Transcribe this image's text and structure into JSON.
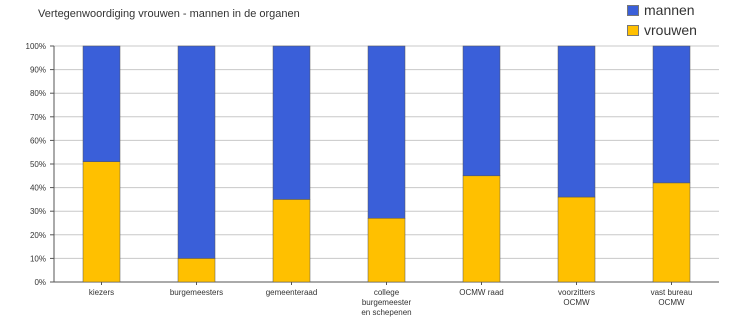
{
  "chart_data": {
    "type": "bar",
    "stacked": true,
    "title": "Vertegenwoordiging vrouwen - mannen in de organen",
    "categories": [
      "kiezers",
      "burgemeesters",
      "gemeenteraad",
      "college burgemeester en schepenen",
      "OCMW raad",
      "voorzitters OCMW",
      "vast bureau OCMW"
    ],
    "category_lines": [
      [
        "kiezers"
      ],
      [
        "burgemeesters"
      ],
      [
        "gemeenteraad"
      ],
      [
        "college",
        "burgemeester",
        "en schepenen"
      ],
      [
        "OCMW raad"
      ],
      [
        "voorzitters",
        "OCMW"
      ],
      [
        "vast bureau",
        "OCMW"
      ]
    ],
    "series": [
      {
        "name": "vrouwen",
        "color": "#FFC000",
        "values": [
          51,
          10,
          35,
          27,
          45,
          36,
          42
        ]
      },
      {
        "name": "mannen",
        "color": "#3A5FD9",
        "values": [
          49,
          90,
          65,
          73,
          55,
          64,
          58
        ]
      }
    ],
    "ylim": [
      0,
      100
    ],
    "yticks": [
      "0%",
      "10%",
      "20%",
      "30%",
      "40%",
      "50%",
      "60%",
      "70%",
      "80%",
      "90%",
      "100%"
    ],
    "xlabel": "",
    "ylabel": "",
    "grid": true,
    "legend": "top-right"
  }
}
